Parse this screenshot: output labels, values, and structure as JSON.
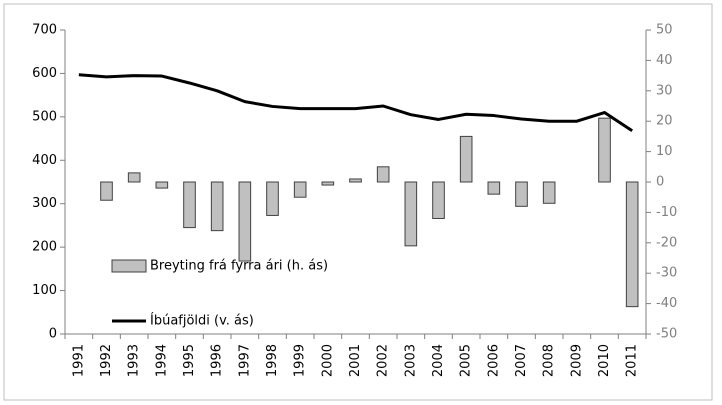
{
  "chart_data": {
    "type": "bar_line",
    "categories": [
      "1991",
      "1992",
      "1993",
      "1994",
      "1995",
      "1996",
      "1997",
      "1998",
      "1999",
      "2000",
      "2001",
      "2002",
      "2003",
      "2004",
      "2005",
      "2006",
      "2007",
      "2008",
      "2009",
      "2010",
      "2011"
    ],
    "series": [
      {
        "name": "Breyting frá fyrra ári (h. ás)",
        "type": "bar",
        "axis": "y2",
        "color": "#c0c0c0",
        "values": [
          null,
          -6,
          3,
          -2,
          -15,
          -16,
          -26,
          -11,
          -5,
          -1,
          1,
          5,
          -21,
          -12,
          15,
          -4,
          -8,
          -7,
          0,
          21,
          -41
        ]
      },
      {
        "name": "Íbúafjöldi (v. ás)",
        "type": "line",
        "color": "#000000",
        "values": [
          597,
          592,
          595,
          594,
          578,
          560,
          535,
          524,
          519,
          519,
          519,
          525,
          505,
          494,
          506,
          503,
          495,
          490,
          490,
          510,
          468
        ]
      }
    ],
    "ylim": [
      0,
      700
    ],
    "yticks": [
      0,
      100,
      200,
      300,
      400,
      500,
      600,
      700
    ],
    "y2lim": [
      -50,
      50
    ],
    "y2ticks": [
      -50,
      -40,
      -30,
      -20,
      -10,
      0,
      10,
      20,
      30,
      40,
      50
    ]
  }
}
